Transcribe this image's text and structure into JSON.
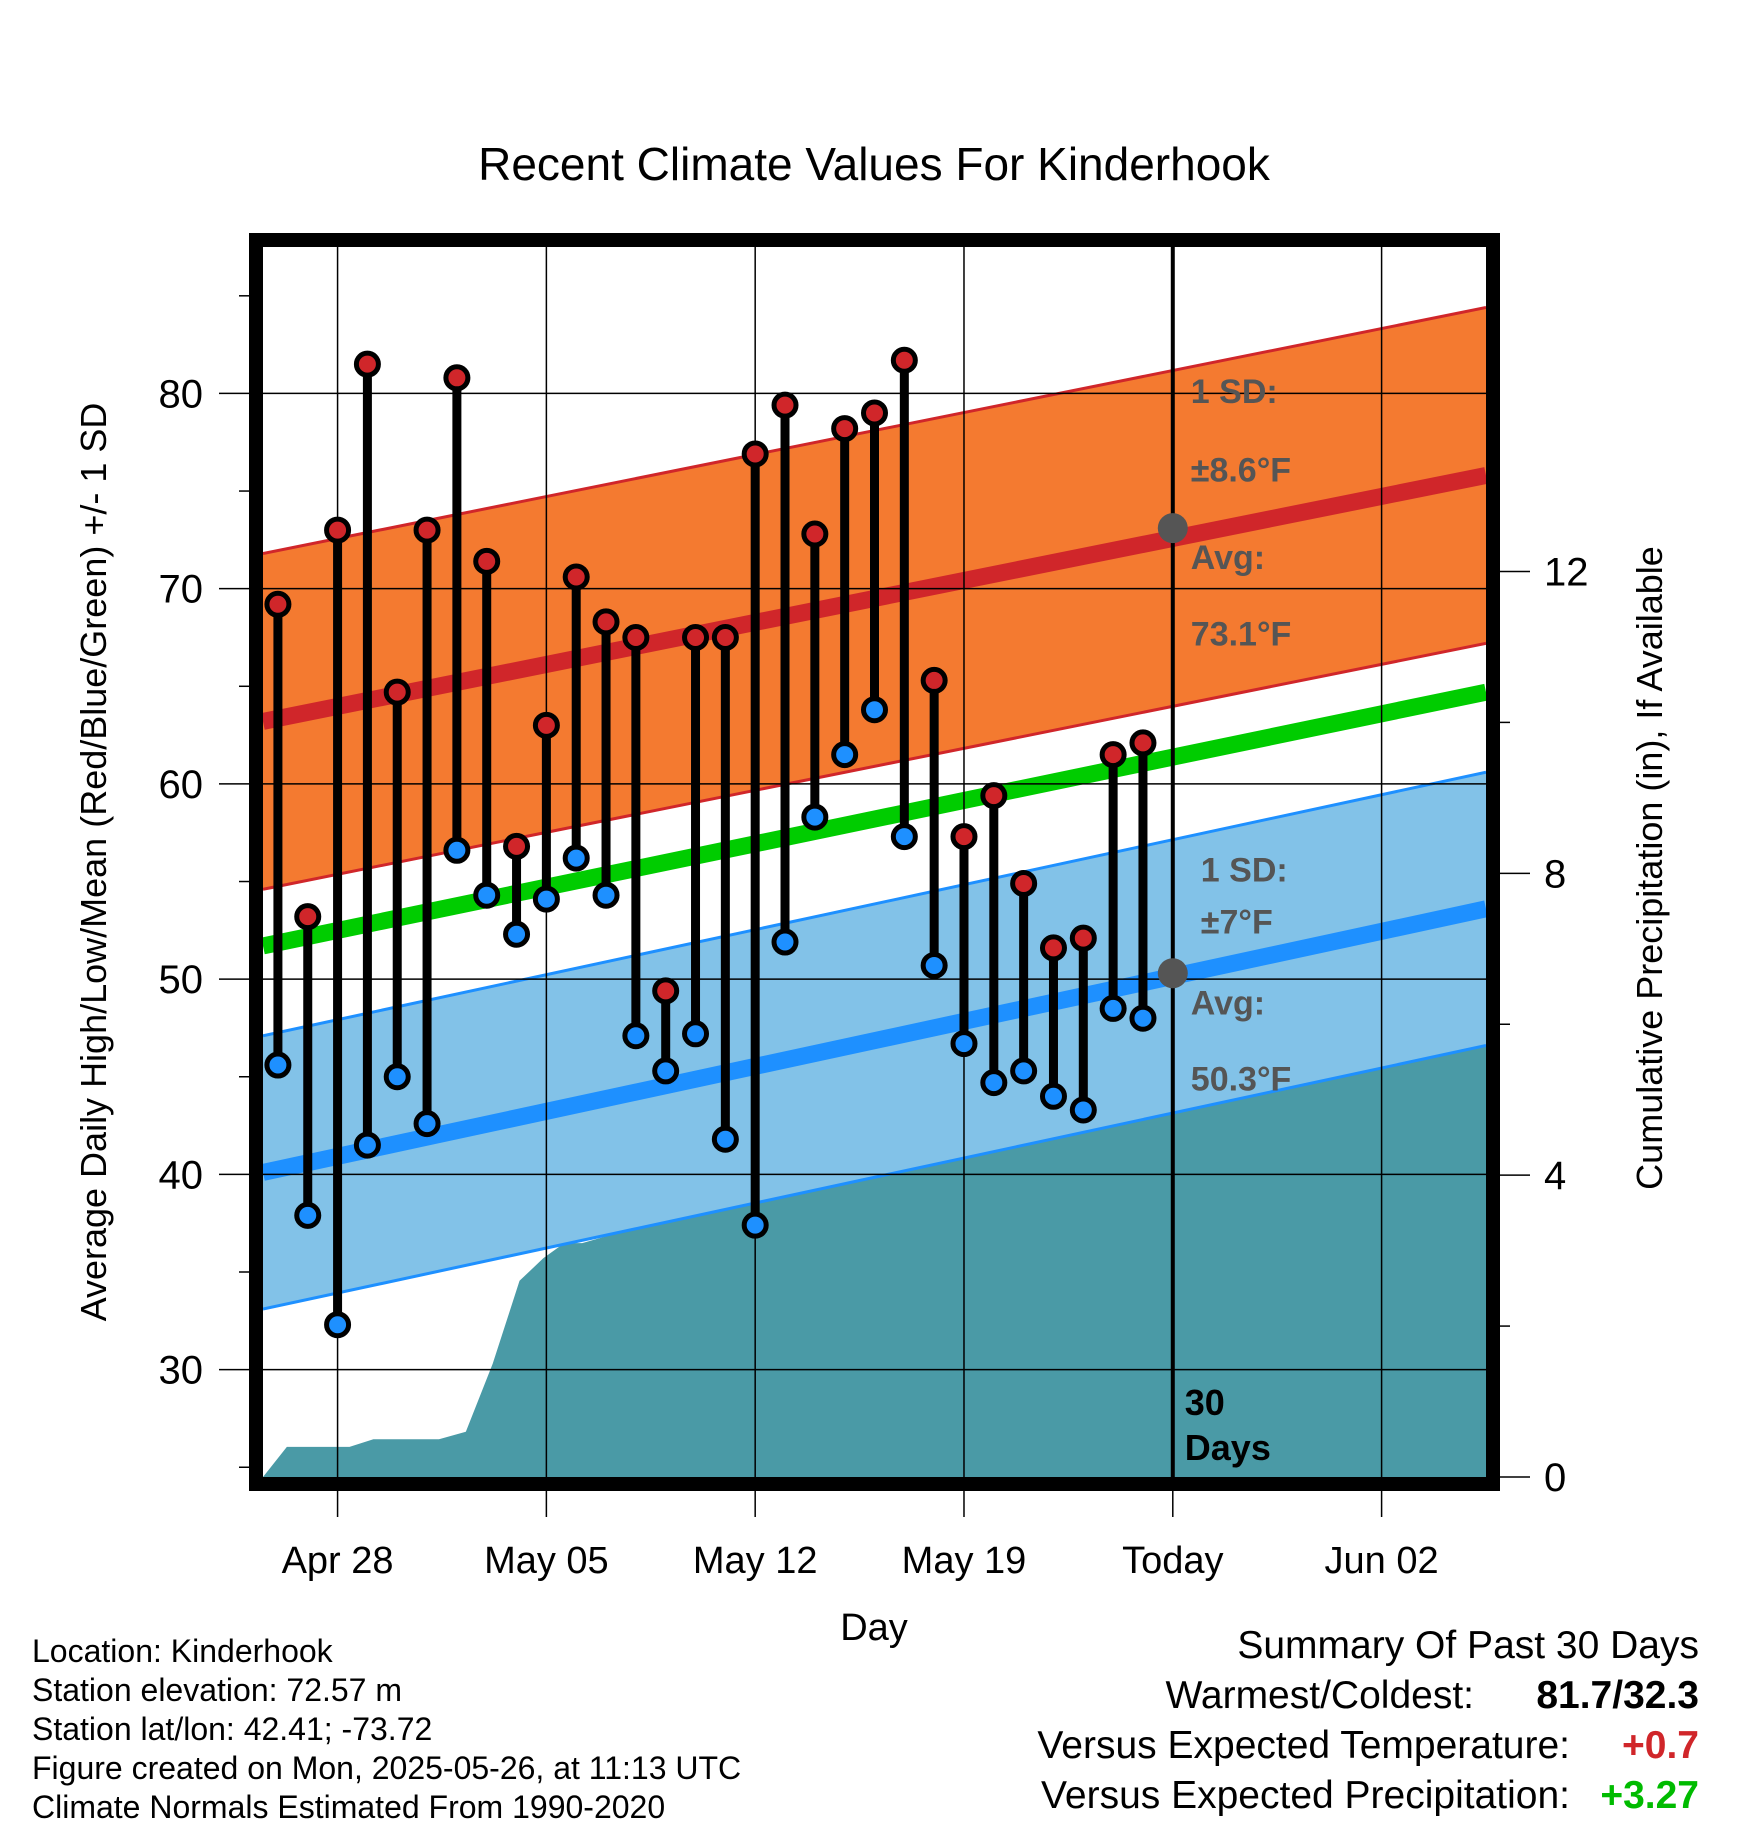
{
  "chart_data": {
    "type": "line",
    "title": "Recent Climate Values For Kinderhook",
    "xlabel": "Day",
    "ylabel": "Average Daily High/Low/Mean (Red/Blue/Green) +/- 1 SD",
    "y2label": "Cumulative Precipitation (in), If Available",
    "ylim": [
      24.5,
      87.5
    ],
    "y2lim": [
      0,
      16.3
    ],
    "yticks": [
      30,
      40,
      50,
      60,
      70,
      80
    ],
    "y2ticks": [
      0,
      4,
      8,
      12
    ],
    "x_tick_labels": [
      "Apr 28",
      "May 05",
      "May 12",
      "May 19",
      "Today",
      "Jun 02"
    ],
    "x_tick_days": [
      3,
      10,
      17,
      24,
      31,
      38
    ],
    "x_range_days": [
      0.5,
      41.5
    ],
    "grid": true,
    "days": [
      1,
      2,
      3,
      4,
      5,
      6,
      7,
      8,
      9,
      10,
      11,
      12,
      13,
      14,
      15,
      16,
      17,
      18,
      19,
      20,
      21,
      22,
      23,
      24,
      25,
      26,
      27,
      28,
      29,
      30
    ],
    "highs": [
      69.2,
      53.2,
      73.0,
      81.5,
      64.7,
      73.0,
      80.8,
      71.4,
      56.8,
      63.0,
      70.6,
      68.3,
      67.5,
      49.4,
      67.5,
      67.5,
      76.9,
      79.4,
      72.8,
      78.2,
      79.0,
      81.7,
      65.3,
      57.3,
      59.4,
      54.9,
      51.6,
      52.1,
      61.5,
      62.1
    ],
    "lows": [
      45.6,
      37.9,
      32.3,
      41.5,
      45.0,
      42.6,
      56.6,
      54.3,
      52.3,
      54.1,
      56.2,
      54.3,
      47.1,
      45.3,
      47.2,
      41.8,
      37.4,
      51.9,
      58.3,
      61.5,
      63.8,
      57.3,
      50.7,
      46.7,
      44.7,
      45.3,
      44.0,
      43.3,
      48.5,
      48.0
    ],
    "normal_high": {
      "start": 63.2,
      "end": 75.8,
      "sd": 8.6
    },
    "normal_low": {
      "start": 40.1,
      "end": 53.6,
      "sd": 7.0
    },
    "normal_mean": {
      "start": 51.7,
      "end": 64.7
    },
    "precip_cumulative": {
      "x": [
        0.5,
        1.3,
        3.4,
        4.2,
        6.4,
        7.3,
        8.2,
        9.1,
        9.9,
        10.6,
        11.2,
        12.1,
        13.0,
        13.6,
        14.1,
        15.0,
        16.1,
        17.0,
        18.9,
        20.0,
        21.1,
        22.0,
        24.0,
        24.6,
        25.6,
        26.7,
        27.5,
        28.3,
        41.5
      ],
      "y": [
        0.0,
        0.4,
        0.4,
        0.5,
        0.5,
        0.6,
        1.5,
        2.6,
        2.9,
        3.1,
        3.1,
        3.2,
        5.4,
        5.5,
        5.5,
        5.5,
        5.5,
        5.5,
        5.5,
        5.6,
        5.6,
        5.9,
        5.9,
        5.9,
        6.0,
        6.2,
        6.4,
        6.5,
        6.5
      ]
    },
    "annotations": {
      "high_sd": "1 SD:",
      "high_sd_value": "±8.6°F",
      "high_avg": "Avg:",
      "high_avg_value": "73.1°F",
      "low_sd": "1 SD:",
      "low_sd_value": "±7°F",
      "low_avg": "Avg:",
      "low_avg_value": "50.3°F",
      "days_count": "30",
      "days_label": "Days"
    },
    "colors": {
      "high_band": "#f47a30",
      "high_line": "#d0262a",
      "low_band": "#82c2e8",
      "low_line": "#1e90ff",
      "mean_line": "#00cc00",
      "precip": "#4a9aa6",
      "high_marker": "#d0262a",
      "low_marker": "#1e90ff",
      "annotation": "#555555"
    }
  },
  "meta": {
    "location": "Location: Kinderhook",
    "elevation": "Station elevation: 72.57 m",
    "latlon": "Station lat/lon: 42.41; -73.72",
    "created": "Figure created on Mon, 2025-05-26, at 11:13 UTC",
    "normals": "Climate Normals Estimated From 1990-2020"
  },
  "summary": {
    "title": "Summary Of Past 30 Days",
    "warm_cold_label": "Warmest/Coldest:",
    "warm_cold_value": "81.7/32.3",
    "temp_label": "Versus Expected Temperature:",
    "temp_value": "+0.7",
    "temp_color": "#d0262a",
    "precip_label": "Versus Expected Precipitation:",
    "precip_value": "+3.27",
    "precip_color": "#00bb00"
  }
}
